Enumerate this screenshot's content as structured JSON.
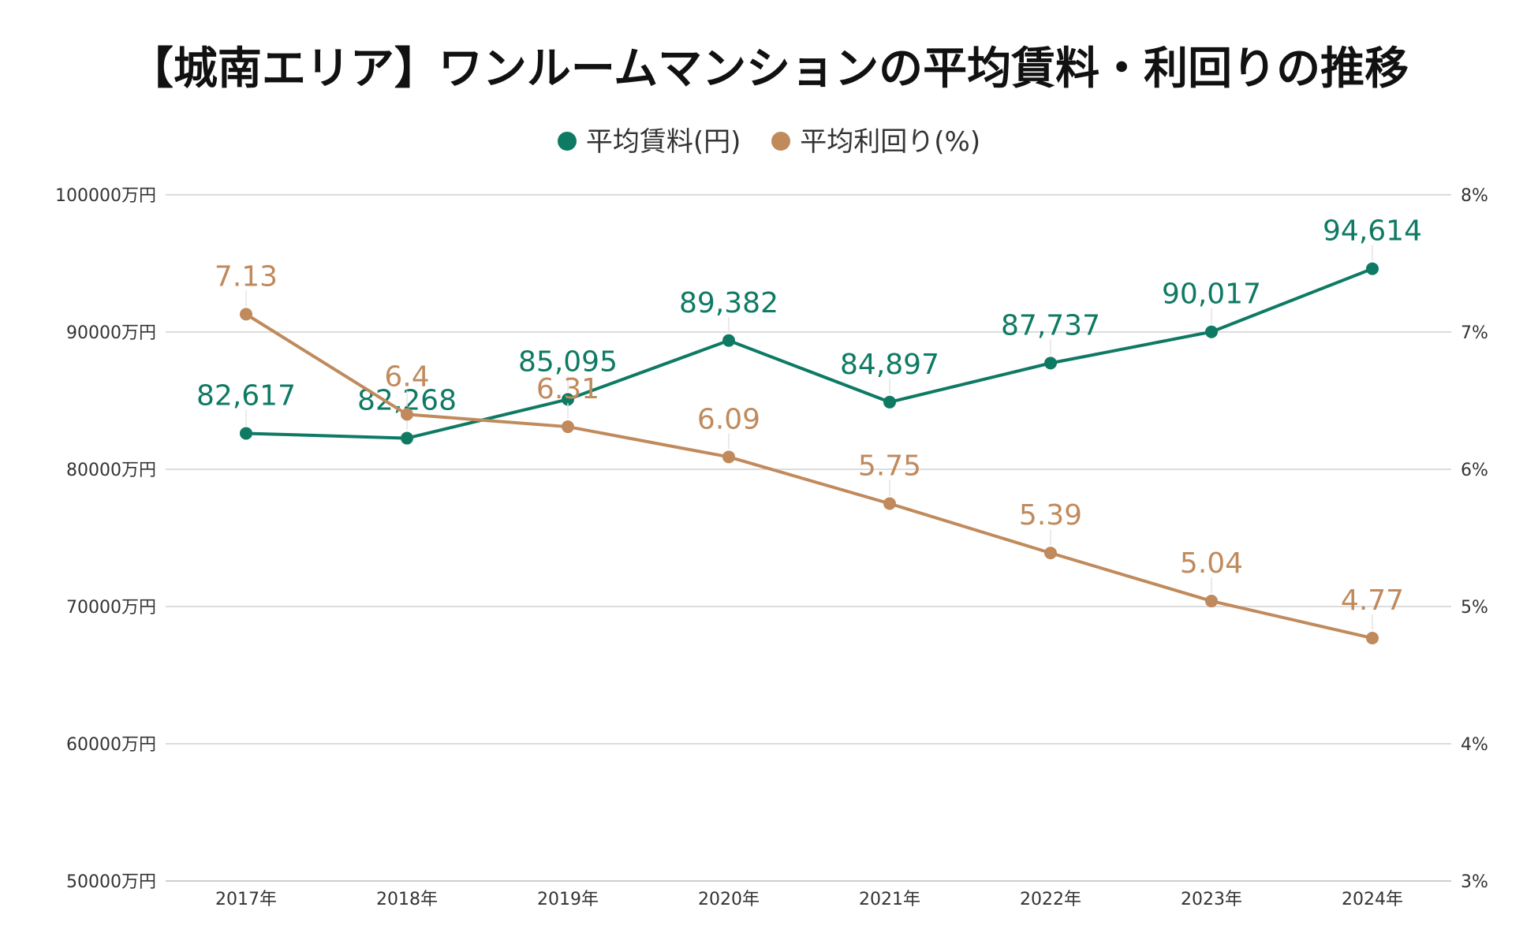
{
  "chart_data": {
    "type": "line",
    "title": "【城南エリア】ワンルームマンションの平均賃料・利回りの推移",
    "categories": [
      "2017年",
      "2018年",
      "2019年",
      "2020年",
      "2021年",
      "2022年",
      "2023年",
      "2024年"
    ],
    "series": [
      {
        "name": "平均賃料(円)",
        "axis": "left",
        "color": "#0e7a64",
        "values": [
          82617,
          82268,
          85095,
          89382,
          84897,
          87737,
          90017,
          94614
        ],
        "labels": [
          "82,617",
          "82,268",
          "85,095",
          "89,382",
          "84,897",
          "87,737",
          "90,017",
          "94,614"
        ]
      },
      {
        "name": "平均利回り(%)",
        "axis": "right",
        "color": "#c08a5c",
        "values": [
          7.13,
          6.4,
          6.31,
          6.09,
          5.75,
          5.39,
          5.04,
          4.77
        ],
        "labels": [
          "7.13",
          "6.4",
          "6.31",
          "6.09",
          "5.75",
          "5.39",
          "5.04",
          "4.77"
        ]
      }
    ],
    "y_left": {
      "min": 50000,
      "max": 100000,
      "ticks": [
        "50000万円",
        "60000万円",
        "70000万円",
        "80000万円",
        "90000万円",
        "100000万円"
      ]
    },
    "y_right": {
      "min": 3,
      "max": 8,
      "ticks": [
        "3%",
        "4%",
        "5%",
        "6%",
        "7%",
        "8%"
      ]
    },
    "grid": true,
    "legend_position": "top-center"
  }
}
